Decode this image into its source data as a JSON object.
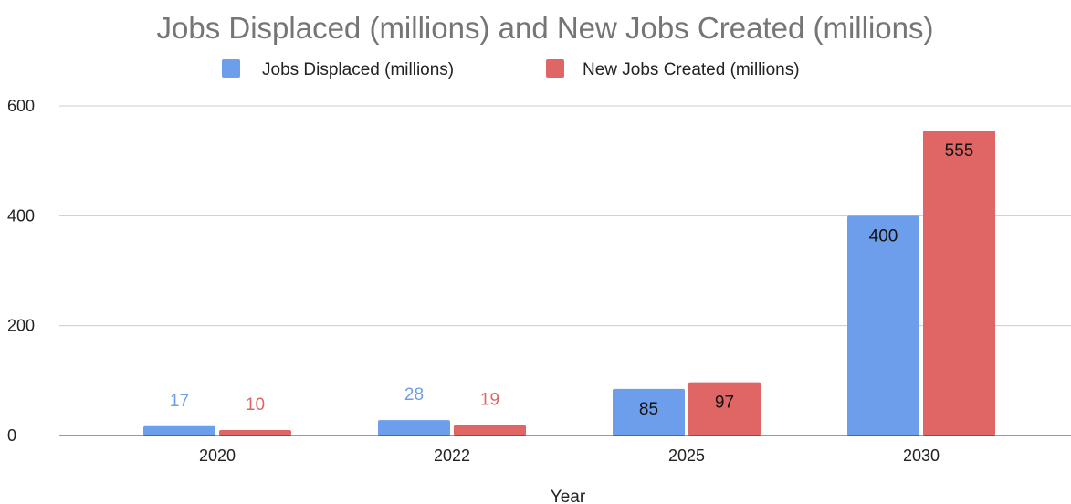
{
  "chart_data": {
    "type": "bar",
    "title": "Jobs Displaced (millions) and New Jobs Created (millions)",
    "xlabel": "Year",
    "ylabel": "",
    "categories": [
      "2020",
      "2022",
      "2025",
      "2030"
    ],
    "series": [
      {
        "name": "Jobs Displaced (millions)",
        "values": [
          17,
          28,
          85,
          400
        ],
        "color": "#6d9eeb"
      },
      {
        "name": "New Jobs Created (millions)",
        "values": [
          10,
          19,
          97,
          555
        ],
        "color": "#e06666"
      }
    ],
    "ylim": [
      0,
      600
    ],
    "yticks": [
      0,
      200,
      400,
      600
    ],
    "grid": true,
    "legend": "top"
  }
}
